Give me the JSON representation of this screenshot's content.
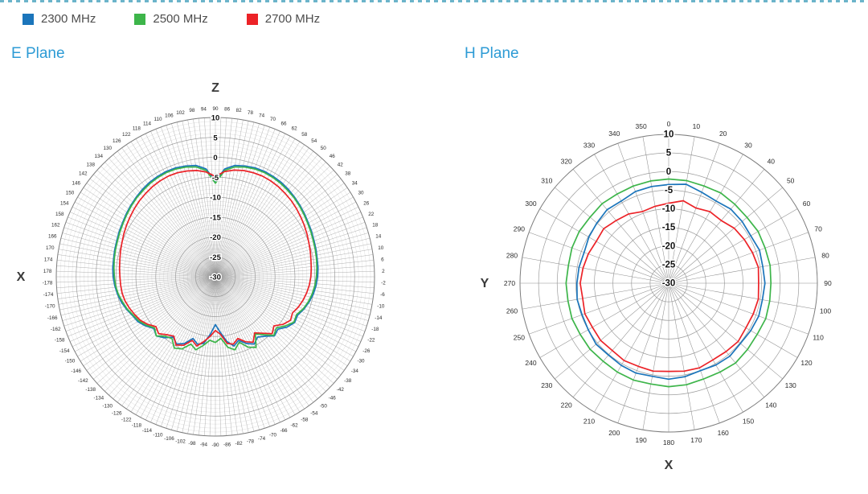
{
  "page": {
    "top_border_color": "#6cb4ca"
  },
  "legend": {
    "position": "top-left",
    "items": [
      {
        "label": "2300 MHz",
        "color": "#1b75bb"
      },
      {
        "label": "2500 MHz",
        "color": "#3db54a"
      },
      {
        "label": "2700 MHz",
        "color": "#ec2227"
      }
    ]
  },
  "sections": {
    "e_plane": {
      "title": "E Plane"
    },
    "h_plane": {
      "title": "H Plane"
    }
  },
  "chart_data": [
    {
      "id": "e_plane",
      "type": "line",
      "subtype": "polar-radiation-pattern",
      "title": "E Plane",
      "angle_convention": "math",
      "angle_unit": "degrees",
      "spoke_step_deg": 2,
      "grid": true,
      "legend_position": "top",
      "r_axis": {
        "unit": "dB",
        "min": -30,
        "max": 10,
        "tick_step": 5,
        "minor_step": 1,
        "ticks": [
          10,
          5,
          0,
          -5,
          -10,
          -15,
          -20,
          -25,
          -30
        ]
      },
      "axis_letters": [
        {
          "text": "Z",
          "position": "top"
        },
        {
          "text": "X",
          "position": "left"
        }
      ],
      "angle_tick_labels": [
        -178,
        -174,
        -170,
        -166,
        -162,
        -158,
        -154,
        -150,
        -146,
        -142,
        -138,
        -134,
        -130,
        -126,
        -122,
        -118,
        -114,
        -110,
        -106,
        -102,
        -98,
        -94,
        -90,
        -86,
        -82,
        -78,
        -74,
        -70,
        -66,
        -62,
        -58,
        -54,
        -50,
        -46,
        -42,
        -38,
        -34,
        -30,
        -26,
        -22,
        -18,
        -14,
        -10,
        -6,
        -2,
        2,
        6,
        10,
        14,
        18,
        22,
        26,
        30,
        34,
        38,
        42,
        46,
        50,
        54,
        58,
        62,
        66,
        70,
        74,
        78,
        82,
        86,
        90,
        94,
        98,
        102,
        106,
        110,
        114,
        118,
        122,
        126,
        130,
        134,
        138,
        142,
        146,
        150,
        154,
        158,
        162,
        166,
        170,
        174,
        178
      ],
      "series": [
        {
          "name": "2300 MHz",
          "color": "#1b75bb",
          "angle_start": -180,
          "angle_step": 5,
          "values": [
            -4.3,
            -4.6,
            -5.0,
            -5.5,
            -6.2,
            -7.0,
            -7.5,
            -8.5,
            -9.8,
            -9.0,
            -10.0,
            -11.5,
            -10.5,
            -11.5,
            -13.5,
            -12.5,
            -13.0,
            -15.5,
            -18.0,
            -16.0,
            -13.5,
            -12.0,
            -13.0,
            -11.5,
            -10.5,
            -11.5,
            -10.5,
            -9.0,
            -9.5,
            -8.0,
            -7.0,
            -7.2,
            -6.3,
            -5.6,
            -5.0,
            -4.6,
            -4.3,
            -4.1,
            -4.0,
            -3.8,
            -3.6,
            -3.3,
            -3.0,
            -2.6,
            -2.2,
            -1.8,
            -1.4,
            -1.1,
            -0.9,
            -0.8,
            -0.9,
            -1.2,
            -1.6,
            -2.8,
            -6.0,
            -2.8,
            -1.6,
            -1.2,
            -0.9,
            -0.8,
            -0.9,
            -1.1,
            -1.4,
            -1.8,
            -2.2,
            -2.6,
            -3.0,
            -3.3,
            -3.6,
            -3.8,
            -4.0,
            -4.1
          ]
        },
        {
          "name": "2500 MHz",
          "color": "#3db54a",
          "angle_start": -180,
          "angle_step": 5,
          "values": [
            -4.6,
            -4.8,
            -5.2,
            -5.8,
            -6.4,
            -7.2,
            -7.8,
            -8.8,
            -10.0,
            -9.0,
            -10.5,
            -11.0,
            -9.3,
            -10.0,
            -12.0,
            -11.0,
            -12.5,
            -14.0,
            -13.5,
            -14.5,
            -12.0,
            -11.0,
            -12.5,
            -10.5,
            -9.5,
            -12.5,
            -11.0,
            -9.2,
            -10.0,
            -8.5,
            -7.2,
            -7.5,
            -6.5,
            -5.8,
            -5.3,
            -4.9,
            -4.6,
            -4.4,
            -4.2,
            -4.0,
            -3.8,
            -3.5,
            -3.2,
            -2.8,
            -2.4,
            -2.0,
            -1.7,
            -1.4,
            -1.2,
            -1.1,
            -1.2,
            -1.5,
            -2.0,
            -3.2,
            -6.5,
            -3.2,
            -2.0,
            -1.5,
            -1.2,
            -1.1,
            -1.2,
            -1.4,
            -1.7,
            -2.0,
            -2.4,
            -2.8,
            -3.2,
            -3.5,
            -3.8,
            -4.0,
            -4.2,
            -4.4
          ]
        },
        {
          "name": "2700 MHz",
          "color": "#ec2227",
          "angle_start": -180,
          "angle_step": 5,
          "values": [
            -6.0,
            -6.1,
            -6.2,
            -6.5,
            -7.0,
            -7.6,
            -8.2,
            -9.2,
            -10.5,
            -9.8,
            -11.0,
            -11.8,
            -10.2,
            -11.0,
            -13.0,
            -12.0,
            -13.5,
            -15.0,
            -16.5,
            -15.5,
            -13.0,
            -12.5,
            -13.5,
            -12.0,
            -11.0,
            -12.8,
            -11.5,
            -9.8,
            -10.8,
            -9.2,
            -8.2,
            -8.6,
            -7.8,
            -7.2,
            -6.7,
            -6.3,
            -6.0,
            -5.8,
            -5.6,
            -5.3,
            -5.0,
            -4.6,
            -4.2,
            -3.8,
            -3.4,
            -3.0,
            -2.7,
            -2.4,
            -2.2,
            -2.1,
            -2.2,
            -2.4,
            -2.8,
            -3.5,
            -4.8,
            -3.6,
            -2.9,
            -2.5,
            -2.2,
            -2.1,
            -2.2,
            -2.4,
            -2.7,
            -3.0,
            -3.4,
            -3.8,
            -4.2,
            -4.6,
            -5.0,
            -5.3,
            -5.6,
            -5.8
          ]
        }
      ]
    },
    {
      "id": "h_plane",
      "type": "line",
      "subtype": "polar-radiation-pattern",
      "title": "H Plane",
      "angle_convention": "compass",
      "angle_unit": "degrees",
      "spoke_step_deg": 10,
      "grid": true,
      "legend_position": "top",
      "r_axis": {
        "unit": "dB",
        "min": -30,
        "max": 10,
        "tick_step": 5,
        "minor_step": null,
        "ticks": [
          10,
          5,
          0,
          -5,
          -10,
          -15,
          -20,
          -25,
          -30
        ]
      },
      "axis_letters": [
        {
          "text": "Y",
          "position": "left"
        },
        {
          "text": "X",
          "position": "bottom"
        }
      ],
      "angle_tick_labels": [
        0,
        10,
        20,
        30,
        40,
        50,
        60,
        70,
        80,
        90,
        100,
        110,
        120,
        130,
        140,
        150,
        160,
        170,
        180,
        190,
        200,
        210,
        220,
        230,
        240,
        250,
        260,
        270,
        280,
        290,
        300,
        310,
        320,
        330,
        340,
        350
      ],
      "series": [
        {
          "name": "2300 MHz",
          "color": "#1b75bb",
          "angle_start": 0,
          "angle_step": 10,
          "values": [
            -3.5,
            -3.0,
            -4.0,
            -4.5,
            -4.0,
            -4.2,
            -4.5,
            -4.0,
            -4.3,
            -4.1,
            -4.4,
            -4.2,
            -4.5,
            -4.8,
            -4.4,
            -4.6,
            -5.0,
            -4.5,
            -4.2,
            -4.6,
            -4.3,
            -4.5,
            -4.8,
            -4.5,
            -5.0,
            -5.2,
            -5.0,
            -5.3,
            -5.5,
            -5.8,
            -5.2,
            -4.8,
            -4.2,
            -4.5,
            -3.8,
            -3.6
          ]
        },
        {
          "name": "2500 MHz",
          "color": "#3db54a",
          "angle_start": 0,
          "angle_step": 10,
          "values": [
            -2.0,
            -2.0,
            -2.2,
            -2.0,
            -2.3,
            -2.5,
            -2.2,
            -2.4,
            -2.3,
            -2.5,
            -2.4,
            -2.2,
            -2.5,
            -2.3,
            -2.0,
            -2.4,
            -2.6,
            -2.3,
            -2.2,
            -2.5,
            -2.3,
            -2.4,
            -2.6,
            -2.4,
            -2.5,
            -2.3,
            -2.5,
            -2.4,
            -2.6,
            -2.3,
            -2.2,
            -2.4,
            -2.1,
            -2.3,
            -2.2,
            -2.1
          ]
        },
        {
          "name": "2700 MHz",
          "color": "#ec2227",
          "angle_start": 0,
          "angle_step": 10,
          "values": [
            -8.5,
            -7.5,
            -8.5,
            -7.8,
            -8.0,
            -7.0,
            -6.5,
            -6.0,
            -5.5,
            -5.8,
            -5.5,
            -5.8,
            -6.0,
            -5.6,
            -6.0,
            -6.2,
            -5.8,
            -6.0,
            -6.3,
            -6.0,
            -6.2,
            -6.0,
            -6.4,
            -6.1,
            -6.3,
            -6.0,
            -6.5,
            -6.2,
            -6.6,
            -7.0,
            -7.5,
            -7.2,
            -8.0,
            -8.5,
            -9.5,
            -9.0
          ]
        }
      ]
    }
  ]
}
